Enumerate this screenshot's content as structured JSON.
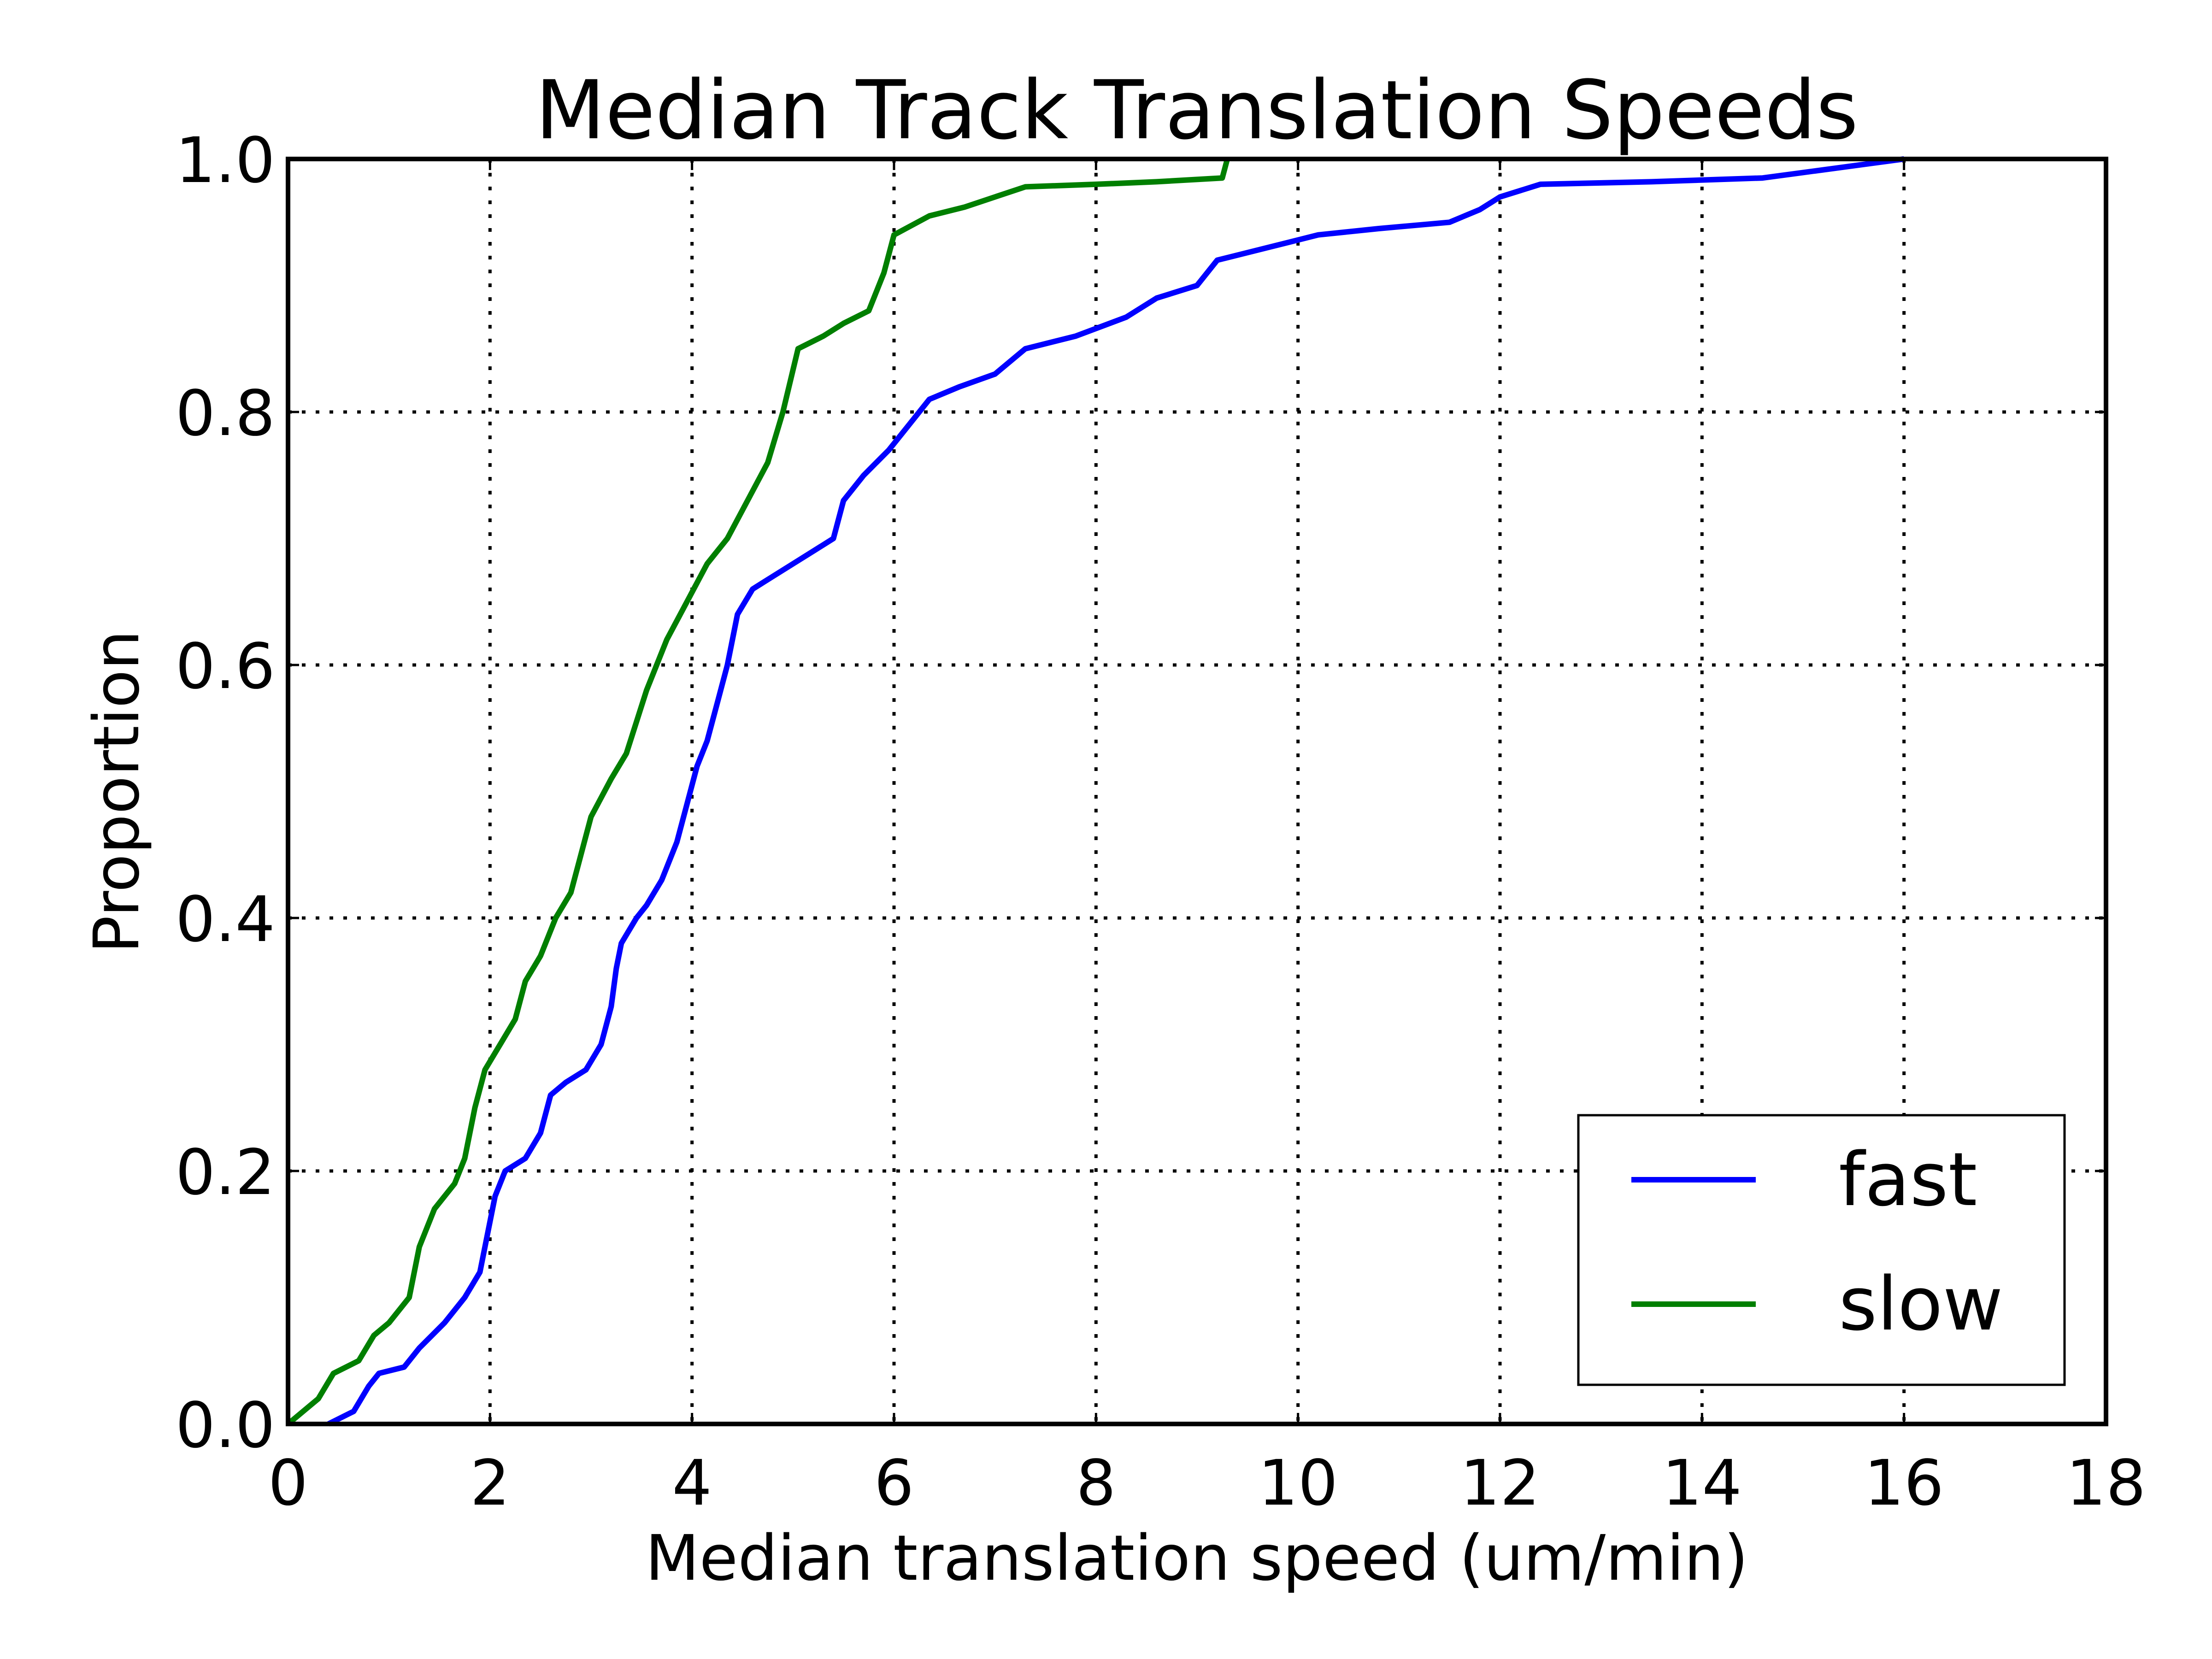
{
  "chart_data": {
    "type": "line",
    "title": "Median Track Translation Speeds",
    "xlabel": "Median translation speed (um/min)",
    "ylabel": "Proportion",
    "xlim": [
      0,
      18
    ],
    "ylim": [
      0.0,
      1.0
    ],
    "xticks": [
      "0",
      "2",
      "4",
      "6",
      "8",
      "10",
      "12",
      "14",
      "16",
      "18"
    ],
    "yticks": [
      "0.0",
      "0.2",
      "0.4",
      "0.6",
      "0.8",
      "1.0"
    ],
    "grid": true,
    "legend_position": "lower right",
    "series": [
      {
        "name": "fast",
        "color": "#0000ff",
        "points": [
          [
            0.4,
            0.0
          ],
          [
            0.65,
            0.01
          ],
          [
            0.8,
            0.03
          ],
          [
            0.9,
            0.04
          ],
          [
            1.15,
            0.045
          ],
          [
            1.3,
            0.06
          ],
          [
            1.55,
            0.08
          ],
          [
            1.75,
            0.1
          ],
          [
            1.9,
            0.12
          ],
          [
            2.0,
            0.16
          ],
          [
            2.05,
            0.18
          ],
          [
            2.15,
            0.2
          ],
          [
            2.35,
            0.21
          ],
          [
            2.5,
            0.23
          ],
          [
            2.6,
            0.26
          ],
          [
            2.75,
            0.27
          ],
          [
            2.95,
            0.28
          ],
          [
            3.1,
            0.3
          ],
          [
            3.2,
            0.33
          ],
          [
            3.25,
            0.36
          ],
          [
            3.3,
            0.38
          ],
          [
            3.45,
            0.4
          ],
          [
            3.55,
            0.41
          ],
          [
            3.7,
            0.43
          ],
          [
            3.85,
            0.46
          ],
          [
            3.95,
            0.49
          ],
          [
            4.05,
            0.52
          ],
          [
            4.15,
            0.54
          ],
          [
            4.25,
            0.57
          ],
          [
            4.35,
            0.6
          ],
          [
            4.45,
            0.64
          ],
          [
            4.6,
            0.66
          ],
          [
            4.8,
            0.67
          ],
          [
            5.0,
            0.68
          ],
          [
            5.2,
            0.69
          ],
          [
            5.4,
            0.7
          ],
          [
            5.5,
            0.73
          ],
          [
            5.7,
            0.75
          ],
          [
            5.95,
            0.77
          ],
          [
            6.15,
            0.79
          ],
          [
            6.35,
            0.81
          ],
          [
            6.65,
            0.82
          ],
          [
            7.0,
            0.83
          ],
          [
            7.3,
            0.85
          ],
          [
            7.8,
            0.86
          ],
          [
            8.3,
            0.875
          ],
          [
            8.6,
            0.89
          ],
          [
            9.0,
            0.9
          ],
          [
            9.2,
            0.92
          ],
          [
            9.7,
            0.93
          ],
          [
            10.2,
            0.94
          ],
          [
            10.8,
            0.945
          ],
          [
            11.5,
            0.95
          ],
          [
            11.8,
            0.96
          ],
          [
            12.0,
            0.97
          ],
          [
            12.4,
            0.98
          ],
          [
            13.5,
            0.982
          ],
          [
            14.6,
            0.985
          ],
          [
            16.0,
            1.0
          ]
        ]
      },
      {
        "name": "slow",
        "color": "#007f00",
        "points": [
          [
            0.0,
            0.0
          ],
          [
            0.3,
            0.02
          ],
          [
            0.45,
            0.04
          ],
          [
            0.7,
            0.05
          ],
          [
            0.85,
            0.07
          ],
          [
            1.0,
            0.08
          ],
          [
            1.2,
            0.1
          ],
          [
            1.3,
            0.14
          ],
          [
            1.45,
            0.17
          ],
          [
            1.65,
            0.19
          ],
          [
            1.75,
            0.21
          ],
          [
            1.85,
            0.25
          ],
          [
            1.95,
            0.28
          ],
          [
            2.1,
            0.3
          ],
          [
            2.25,
            0.32
          ],
          [
            2.35,
            0.35
          ],
          [
            2.5,
            0.37
          ],
          [
            2.65,
            0.4
          ],
          [
            2.8,
            0.42
          ],
          [
            2.9,
            0.45
          ],
          [
            3.0,
            0.48
          ],
          [
            3.2,
            0.51
          ],
          [
            3.35,
            0.53
          ],
          [
            3.55,
            0.58
          ],
          [
            3.75,
            0.62
          ],
          [
            3.95,
            0.65
          ],
          [
            4.15,
            0.68
          ],
          [
            4.35,
            0.7
          ],
          [
            4.55,
            0.73
          ],
          [
            4.75,
            0.76
          ],
          [
            4.9,
            0.8
          ],
          [
            5.05,
            0.85
          ],
          [
            5.3,
            0.86
          ],
          [
            5.5,
            0.87
          ],
          [
            5.75,
            0.88
          ],
          [
            5.9,
            0.91
          ],
          [
            6.0,
            0.94
          ],
          [
            6.35,
            0.955
          ],
          [
            6.7,
            0.962
          ],
          [
            7.0,
            0.97
          ],
          [
            7.3,
            0.978
          ],
          [
            8.0,
            0.98
          ],
          [
            8.6,
            0.982
          ],
          [
            9.25,
            0.985
          ],
          [
            9.3,
            1.0
          ]
        ]
      }
    ]
  }
}
